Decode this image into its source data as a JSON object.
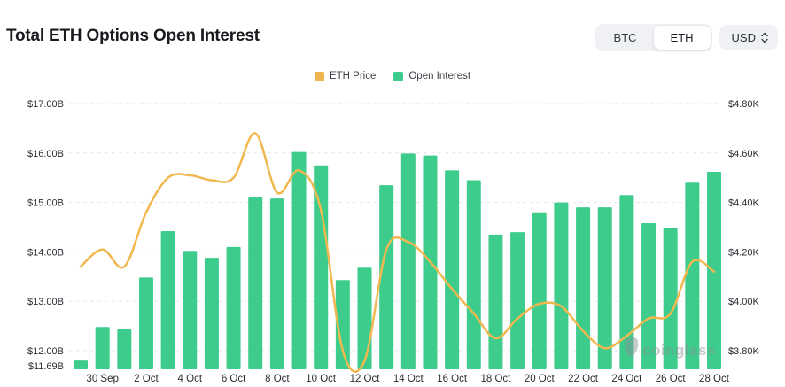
{
  "header": {
    "title": "Total ETH Options Open Interest",
    "asset_toggle": {
      "options": [
        "BTC",
        "ETH"
      ],
      "selected": "ETH"
    },
    "currency_select": {
      "value": "USD"
    }
  },
  "legend": [
    {
      "label": "ETH Price",
      "color": "#eeb44e"
    },
    {
      "label": "Open Interest",
      "color": "#3ecc8d"
    }
  ],
  "watermark": {
    "text": "coinglass",
    "icon": "coinglass-blob-logo"
  },
  "colors": {
    "bar": "#3ecc8d",
    "line": "#f0b84e",
    "grid": "#e6e7e9",
    "axis_text": "#2a2d33",
    "watermark": "#878d94"
  },
  "chart_data": {
    "type": "bar",
    "subtype": "bar-with-line-overlay",
    "title": "Total ETH Options Open Interest",
    "categories": [
      "29 Sep",
      "30 Sep",
      "1 Oct",
      "2 Oct",
      "3 Oct",
      "4 Oct",
      "5 Oct",
      "6 Oct",
      "7 Oct",
      "8 Oct",
      "9 Oct",
      "10 Oct",
      "11 Oct",
      "12 Oct",
      "13 Oct",
      "14 Oct",
      "15 Oct",
      "16 Oct",
      "17 Oct",
      "18 Oct",
      "19 Oct",
      "20 Oct",
      "21 Oct",
      "22 Oct",
      "23 Oct",
      "24 Oct",
      "25 Oct",
      "26 Oct",
      "27 Oct",
      "28 Oct"
    ],
    "x_tick_labels": [
      "30 Sep",
      "2 Oct",
      "4 Oct",
      "6 Oct",
      "8 Oct",
      "10 Oct",
      "12 Oct",
      "14 Oct",
      "16 Oct",
      "18 Oct",
      "20 Oct",
      "22 Oct",
      "24 Oct",
      "26 Oct",
      "28 Oct"
    ],
    "series": [
      {
        "name": "Open Interest",
        "type": "bar",
        "axis": "left",
        "unit": "USD billions",
        "values": [
          11.8,
          12.48,
          12.43,
          13.48,
          14.42,
          14.02,
          13.88,
          14.1,
          15.1,
          15.08,
          16.02,
          15.75,
          13.43,
          13.68,
          15.35,
          15.99,
          15.95,
          15.65,
          15.45,
          14.35,
          14.4,
          14.8,
          15.0,
          14.9,
          14.9,
          15.15,
          14.58,
          14.48,
          15.4,
          15.62
        ]
      },
      {
        "name": "ETH Price",
        "type": "line",
        "axis": "right",
        "unit": "USD thousands",
        "values": [
          4.14,
          4.21,
          4.14,
          4.36,
          4.5,
          4.51,
          4.49,
          4.5,
          4.68,
          4.44,
          4.53,
          4.37,
          3.8,
          3.76,
          4.21,
          4.24,
          4.16,
          4.05,
          3.95,
          3.85,
          3.93,
          3.99,
          3.98,
          3.88,
          3.81,
          3.86,
          3.93,
          3.95,
          4.16,
          4.12
        ]
      }
    ],
    "left_axis": {
      "tick_values": [
        17,
        16,
        15,
        14,
        13,
        12
      ],
      "tick_labels": [
        "$17.00B",
        "$16.00B",
        "$15.00B",
        "$14.00B",
        "$13.00B",
        "$12.00B"
      ],
      "min_value": 11.69,
      "min_label": "$11.69B"
    },
    "right_axis": {
      "tick_values": [
        4.8,
        4.6,
        4.4,
        4.2,
        4.0,
        3.8
      ],
      "tick_labels": [
        "$4.80K",
        "$4.60K",
        "$4.40K",
        "$4.20K",
        "$4.00K",
        "$3.80K"
      ]
    },
    "grid": "horizontal-dashed",
    "legend_position": "top-center"
  }
}
